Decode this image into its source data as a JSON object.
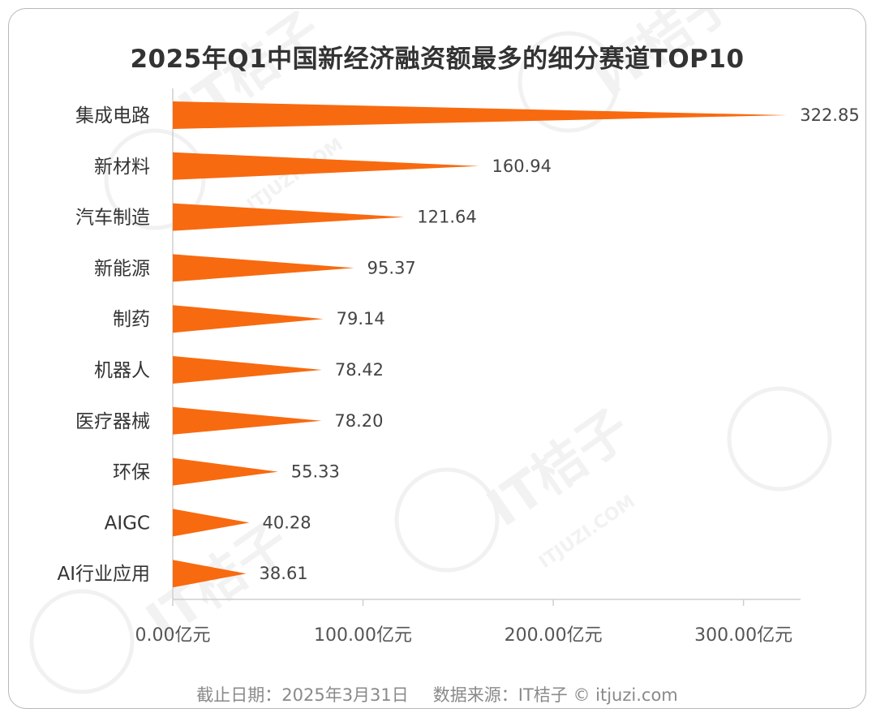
{
  "chart_data": {
    "type": "bar",
    "title": "2025年Q1中国新经济融资额最多的细分赛道TOP10",
    "categories": [
      "集成电路",
      "新材料",
      "汽车制造",
      "新能源",
      "制药",
      "机器人",
      "医疗器械",
      "环保",
      "AIGC",
      "AI行业应用"
    ],
    "values": [
      322.85,
      160.94,
      121.64,
      95.37,
      79.14,
      78.42,
      78.2,
      55.33,
      40.28,
      38.61
    ],
    "value_labels": [
      "322.85",
      "160.94",
      "121.64",
      "95.37",
      "79.14",
      "78.42",
      "78.20",
      "55.33",
      "40.28",
      "38.61"
    ],
    "xticks": [
      0,
      100,
      200,
      300
    ],
    "xtick_labels": [
      "0.00亿元",
      "100.00亿元",
      "200.00亿元",
      "300.00亿元"
    ],
    "xlim": [
      0,
      330
    ],
    "xlabel": "",
    "ylabel": "",
    "bar_color": "#f86a10"
  },
  "footer": {
    "date": "截止日期：2025年3月31日",
    "source": "数据来源：IT桔子 © itjuzi.com"
  },
  "watermark": {
    "brand": "IT桔子",
    "site": "ITJUZI.COM"
  }
}
